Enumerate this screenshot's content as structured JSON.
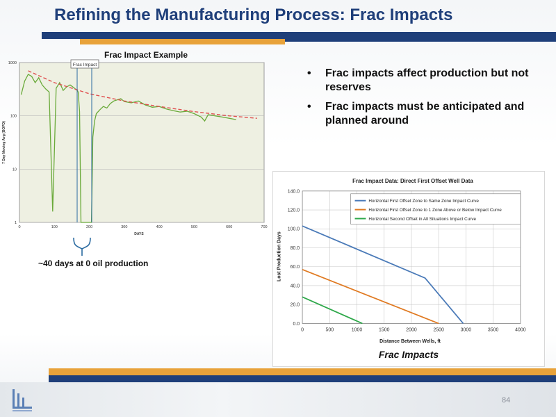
{
  "slide": {
    "title": "Refining the Manufacturing Process: Frac Impacts",
    "page_number": "84"
  },
  "left_chart": {
    "title": "Frac Impact Example",
    "callout": "Frac Impact",
    "annotation": "~40 days at 0 oil production",
    "ylabel": "7 Day Moving Avg (BOPD)",
    "xlabel": "DAYS"
  },
  "bullets": [
    "Frac impacts affect production but not reserves",
    "Frac impacts must be anticipated and planned around"
  ],
  "right_chart": {
    "caption": "Frac Impacts"
  },
  "colors": {
    "title": "#1f3f7a",
    "accent_orange": "#e8a23a",
    "series_blue": "#4a7ab8",
    "series_orange": "#e07a22",
    "series_green": "#2ea84a",
    "production_green": "#6aaa3a",
    "decline_red": "#e05050"
  },
  "chart_data": [
    {
      "type": "line",
      "title": "Frac Impact Example",
      "xlabel": "DAYS",
      "ylabel": "7 Day Moving Avg (BOPD)",
      "yscale": "log",
      "xlim": [
        0,
        700
      ],
      "ylim": [
        1,
        1000
      ],
      "x_ticks": [
        "0",
        "100",
        "200",
        "300",
        "400",
        "500",
        "600",
        "700"
      ],
      "y_ticks": [
        "1",
        "10",
        "100",
        "1000"
      ],
      "grid": true,
      "series": [
        {
          "style": "solid",
          "x": [
            5,
            15,
            25,
            35,
            45,
            55,
            65,
            75,
            85,
            95,
            105,
            115,
            125,
            135,
            145,
            155,
            165,
            168,
            172,
            176,
            180,
            185,
            190,
            195,
            198,
            200,
            203,
            206,
            210,
            215,
            220,
            230,
            240,
            250,
            260,
            270,
            280,
            290,
            300,
            320,
            340,
            360,
            380,
            400,
            420,
            440,
            460,
            480,
            500,
            520,
            530,
            540,
            560,
            580,
            600,
            620
          ],
          "y": [
            250,
            450,
            600,
            550,
            420,
            520,
            380,
            320,
            280,
            1.6,
            330,
            420,
            300,
            350,
            380,
            340,
            300,
            280,
            120,
            1,
            1,
            1,
            1,
            1,
            1,
            1,
            1,
            1,
            40,
            80,
            110,
            130,
            150,
            140,
            170,
            190,
            200,
            210,
            185,
            175,
            190,
            160,
            145,
            150,
            135,
            125,
            118,
            122,
            110,
            95,
            80,
            105,
            100,
            95,
            90,
            85
          ]
        },
        {
          "style": "dashed",
          "x": [
            25,
            100,
            200,
            300,
            400,
            500,
            600,
            680
          ],
          "y": [
            700,
            420,
            260,
            190,
            150,
            120,
            100,
            90
          ]
        }
      ]
    },
    {
      "type": "line",
      "title": "Frac Impact Data: Direct First Offset Well Data",
      "xlabel": "Distance Between Wells, ft",
      "ylabel": "Lost Production Days",
      "xlim": [
        0,
        4000
      ],
      "ylim": [
        0,
        140
      ],
      "x_ticks": [
        "0",
        "500",
        "1000",
        "1500",
        "2000",
        "2500",
        "3000",
        "3500",
        "4000"
      ],
      "y_ticks": [
        "0.0",
        "20.0",
        "40.0",
        "60.0",
        "80.0",
        "100.0",
        "120.0",
        "140.0"
      ],
      "grid": true,
      "legend": "top-right",
      "series": [
        {
          "name": "Horizontal First Offset Zone to Same Zone Impact Curve",
          "color": "#4a7ab8",
          "x": [
            0,
            2250,
            2950
          ],
          "y": [
            103,
            48,
            0
          ]
        },
        {
          "name": "Horizontal First Offset Zone to 1 Zone Above or Below Impact Curve",
          "color": "#e07a22",
          "x": [
            0,
            2500
          ],
          "y": [
            57,
            0
          ]
        },
        {
          "name": "Horizontal Second Offset in All Situations Impact Curve",
          "color": "#2ea84a",
          "x": [
            0,
            1100
          ],
          "y": [
            28,
            0
          ]
        }
      ]
    }
  ]
}
